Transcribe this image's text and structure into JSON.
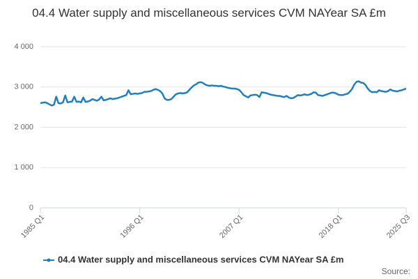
{
  "chart_data": {
    "type": "line",
    "title": "04.4 Water supply and miscellaneous services CVM NAYear SA £m",
    "source": "Source:",
    "categories": [
      "1985 Q1",
      null,
      null,
      null,
      null,
      null,
      null,
      null,
      null,
      null,
      null,
      null,
      null,
      null,
      null,
      null,
      null,
      null,
      null,
      null,
      null,
      null,
      null,
      null,
      null,
      null,
      null,
      null,
      null,
      null,
      null,
      null,
      null,
      null,
      null,
      null,
      null,
      null,
      null,
      null,
      null,
      null,
      null,
      null,
      "1996 Q1",
      null,
      null,
      null,
      null,
      null,
      null,
      null,
      null,
      null,
      null,
      null,
      null,
      null,
      null,
      null,
      null,
      null,
      null,
      null,
      null,
      null,
      null,
      null,
      null,
      null,
      null,
      null,
      null,
      null,
      null,
      null,
      null,
      null,
      null,
      null,
      null,
      null,
      null,
      null,
      null,
      null,
      null,
      null,
      "2007 Q1",
      null,
      null,
      null,
      null,
      null,
      null,
      null,
      null,
      null,
      null,
      null,
      null,
      null,
      null,
      null,
      null,
      null,
      null,
      null,
      null,
      null,
      null,
      null,
      null,
      null,
      null,
      null,
      null,
      null,
      null,
      null,
      null,
      null,
      null,
      null,
      null,
      null,
      null,
      null,
      null,
      null,
      null,
      null,
      "2018 Q1",
      null,
      null,
      null,
      null,
      null,
      null,
      null,
      null,
      null,
      null,
      null,
      null,
      null,
      null,
      null,
      null,
      null,
      null,
      null,
      null,
      null,
      null,
      null,
      null,
      null,
      null,
      null,
      null,
      null,
      "2025 Q3"
    ],
    "series": [
      {
        "name": "04.4 Water supply and miscellaneous services CVM NAYear SA £m",
        "color": "#1f7fbf",
        "values": [
          2600,
          2610,
          2620,
          2600,
          2570,
          2540,
          2560,
          2760,
          2600,
          2590,
          2620,
          2790,
          2620,
          2630,
          2640,
          2760,
          2630,
          2640,
          2620,
          2740,
          2630,
          2640,
          2660,
          2700,
          2680,
          2660,
          2690,
          2760,
          2670,
          2680,
          2700,
          2720,
          2700,
          2710,
          2720,
          2740,
          2760,
          2780,
          2800,
          2920,
          2820,
          2830,
          2840,
          2830,
          2840,
          2850,
          2880,
          2880,
          2890,
          2900,
          2930,
          2950,
          2930,
          2900,
          2840,
          2720,
          2680,
          2680,
          2700,
          2760,
          2820,
          2840,
          2850,
          2840,
          2850,
          2870,
          2930,
          2990,
          3040,
          3070,
          3110,
          3120,
          3100,
          3060,
          3040,
          3030,
          3040,
          3030,
          3030,
          3020,
          3030,
          3010,
          3000,
          2980,
          2970,
          2960,
          2960,
          2950,
          2930,
          2870,
          2800,
          2770,
          2740,
          2790,
          2800,
          2810,
          2800,
          2750,
          2870,
          2860,
          2850,
          2830,
          2810,
          2800,
          2790,
          2780,
          2780,
          2760,
          2750,
          2780,
          2740,
          2720,
          2730,
          2760,
          2800,
          2790,
          2800,
          2820,
          2800,
          2810,
          2830,
          2870,
          2860,
          2800,
          2790,
          2780,
          2800,
          2820,
          2840,
          2860,
          2860,
          2840,
          2810,
          2800,
          2800,
          2820,
          2830,
          2880,
          2950,
          3060,
          3130,
          3140,
          3110,
          3100,
          3050,
          2960,
          2900,
          2870,
          2880,
          2870,
          2920,
          2900,
          2890,
          2880,
          2900,
          2940,
          2910,
          2900,
          2890,
          2910,
          2920,
          2940,
          2960
        ]
      }
    ],
    "ylim": [
      0,
      4000
    ],
    "yticks": [
      0,
      {
        "value": 1000,
        "label": "1 000"
      },
      {
        "value": 2000,
        "label": "2 000"
      },
      {
        "value": 3000,
        "label": "3 000"
      },
      {
        "value": 4000,
        "label": "4 000"
      }
    ],
    "grid": true,
    "legend": "bottom"
  }
}
